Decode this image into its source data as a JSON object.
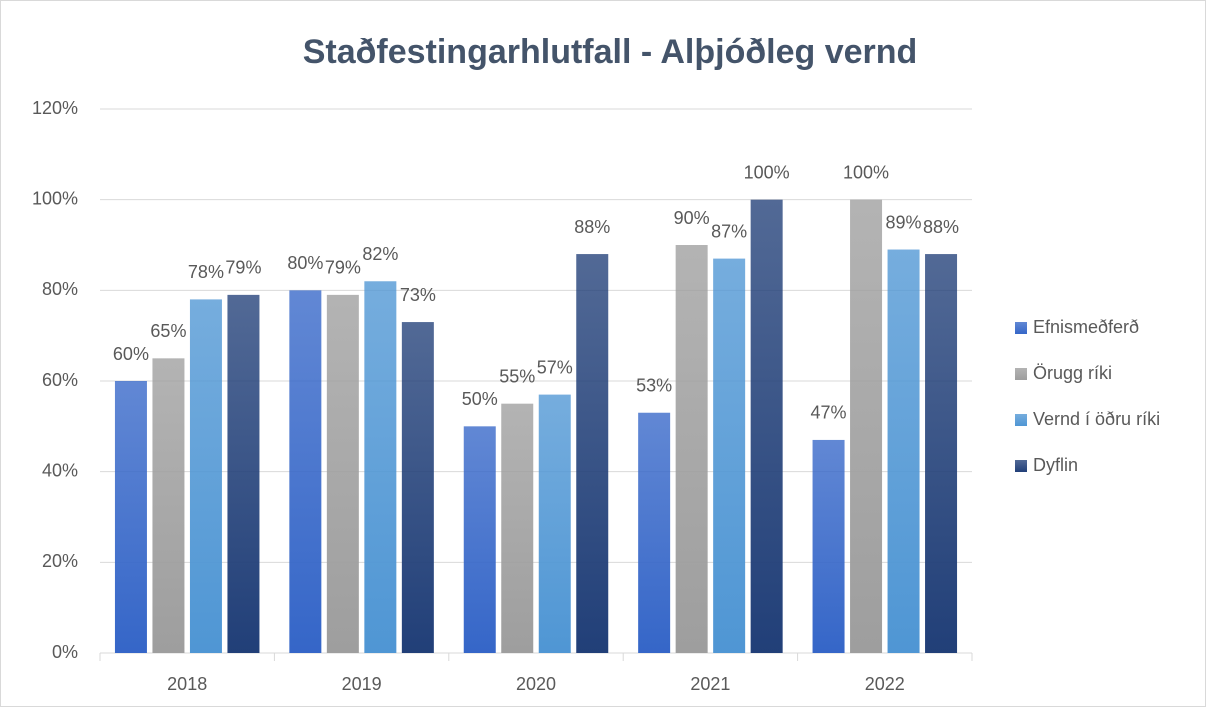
{
  "chart_data": {
    "type": "bar",
    "title": "Staðfestingarhlutfall - Alþjóðleg vernd",
    "categories": [
      "2018",
      "2019",
      "2020",
      "2021",
      "2022"
    ],
    "series": [
      {
        "name": "Efnismeðferð",
        "color": "#3566c8",
        "values": [
          60,
          80,
          50,
          53,
          47
        ],
        "value_labels": [
          "60%",
          "80%",
          "50%",
          "53%",
          "47%"
        ]
      },
      {
        "name": "Örugg ríki",
        "color": "#9e9e9e",
        "values": [
          65,
          79,
          55,
          90,
          100
        ],
        "value_labels": [
          "65%",
          "79%",
          "55%",
          "90%",
          "100%"
        ]
      },
      {
        "name": "Vernd í öðru ríki",
        "color": "#4f96d4",
        "values": [
          78,
          82,
          57,
          87,
          89
        ],
        "value_labels": [
          "78%",
          "82%",
          "57%",
          "87%",
          "89%"
        ]
      },
      {
        "name": "Dyflin",
        "color": "#213f78",
        "values": [
          79,
          73,
          88,
          100,
          88
        ],
        "value_labels": [
          "79%",
          "73%",
          "88%",
          "100%",
          "88%"
        ]
      }
    ],
    "ylim": [
      0,
      120
    ],
    "yticks": [
      {
        "value": 0,
        "label": "0%"
      },
      {
        "value": 20,
        "label": "20%"
      },
      {
        "value": 40,
        "label": "40%"
      },
      {
        "value": 60,
        "label": "60%"
      },
      {
        "value": 80,
        "label": "80%"
      },
      {
        "value": 100,
        "label": "100%"
      },
      {
        "value": 120,
        "label": "120%"
      }
    ],
    "grid": true,
    "legend": "right"
  }
}
